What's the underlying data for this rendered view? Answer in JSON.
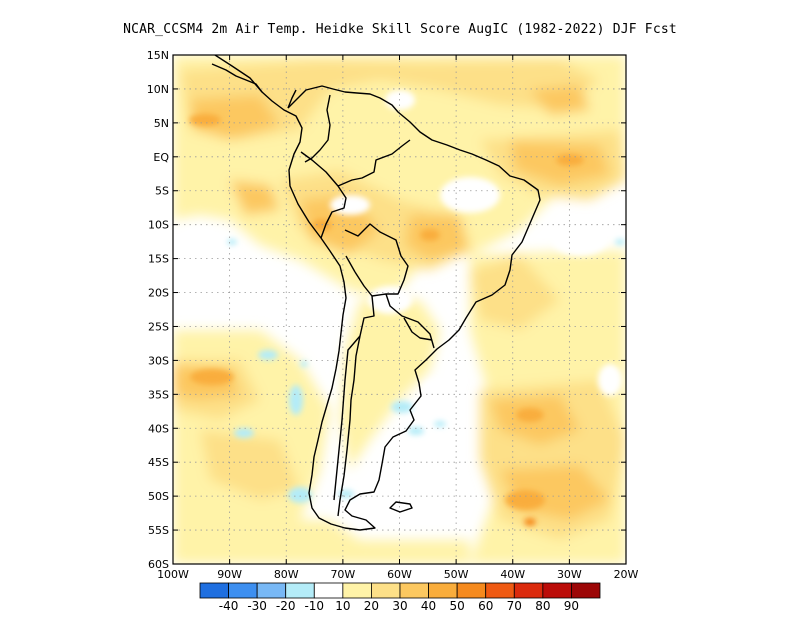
{
  "title": "NCAR_CCSM4  2m Air Temp. Heidke Skill Score AugIC (1982-2022) DJF Fcst",
  "map": {
    "lat_ticks": [
      "15N",
      "10N",
      "5N",
      "EQ",
      "5S",
      "10S",
      "15S",
      "20S",
      "25S",
      "30S",
      "35S",
      "40S",
      "45S",
      "50S",
      "55S",
      "60S"
    ],
    "lon_ticks": [
      "100W",
      "90W",
      "80W",
      "70W",
      "60W",
      "50W",
      "40W",
      "30W",
      "20W"
    ],
    "extent": {
      "lon_min": -100,
      "lon_max": -20,
      "lat_min": -60,
      "lat_max": 15
    },
    "grid": "dotted"
  },
  "colorbar": {
    "labels": [
      "-40",
      "-30",
      "-20",
      "-10",
      "10",
      "20",
      "30",
      "40",
      "50",
      "60",
      "70",
      "80",
      "90"
    ],
    "colors": [
      "#1f6fe0",
      "#3d8ff0",
      "#78b8f5",
      "#b4ecf8",
      "#ffffff",
      "#fff3a8",
      "#fde088",
      "#fcc860",
      "#f9ad3c",
      "#f58a1e",
      "#ef5a12",
      "#db2a0c",
      "#bb0c08",
      "#9c0606"
    ]
  }
}
